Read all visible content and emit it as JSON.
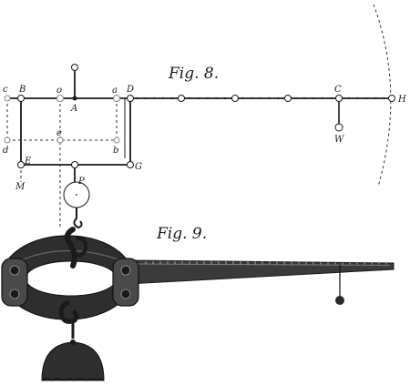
{
  "figures": {
    "fig8": "Fig. 8.",
    "fig9": "Fig. 9."
  },
  "labels": {
    "c": "c",
    "B": "B",
    "o": "o",
    "A": "A",
    "a": "a",
    "D": "D",
    "C": "C",
    "H": "H",
    "W": "W",
    "d": "d",
    "e": "e",
    "b": "b",
    "E": "E",
    "G": "G",
    "M": "M",
    "P": "P"
  }
}
